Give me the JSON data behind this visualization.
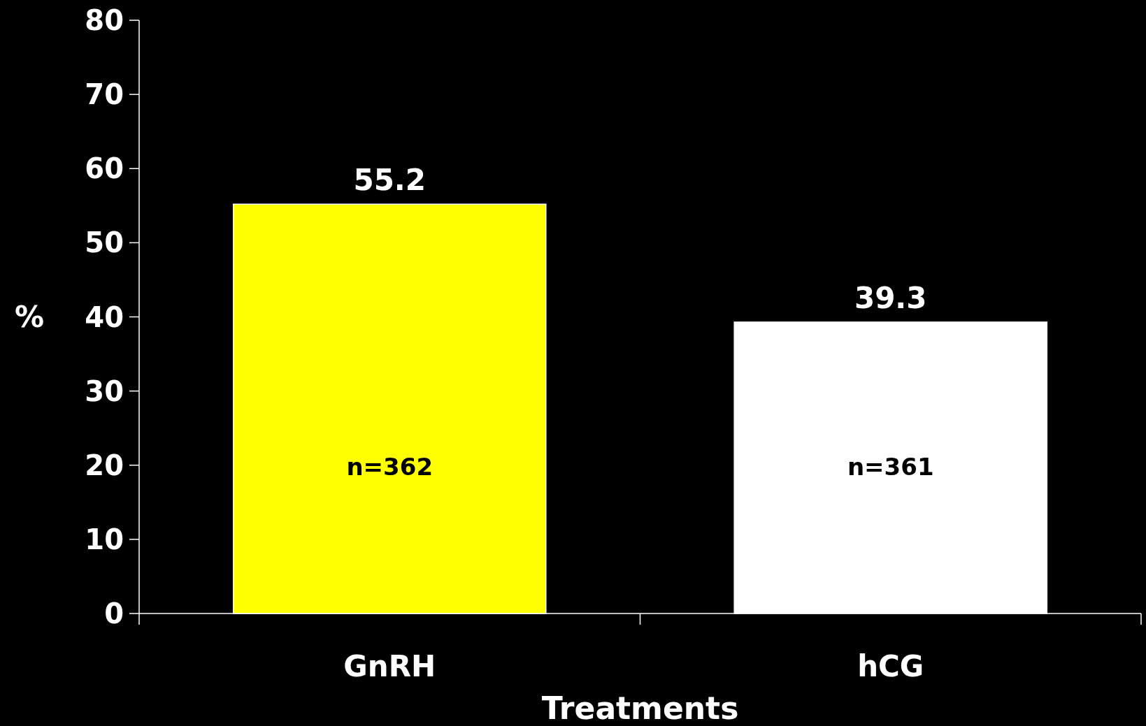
{
  "chart_data": {
    "type": "bar",
    "xlabel": "Treatments",
    "ylabel": "%",
    "categories": [
      "GnRH",
      "hCG"
    ],
    "values": [
      55.2,
      39.3
    ],
    "colors": [
      "#ffff00",
      "#ffffff"
    ],
    "ylim": [
      0,
      80
    ],
    "yticks": [
      0,
      10,
      20,
      30,
      40,
      50,
      60,
      70,
      80
    ],
    "data_labels": true,
    "grid": false,
    "annotations": [
      "n=362",
      "n=361"
    ]
  }
}
